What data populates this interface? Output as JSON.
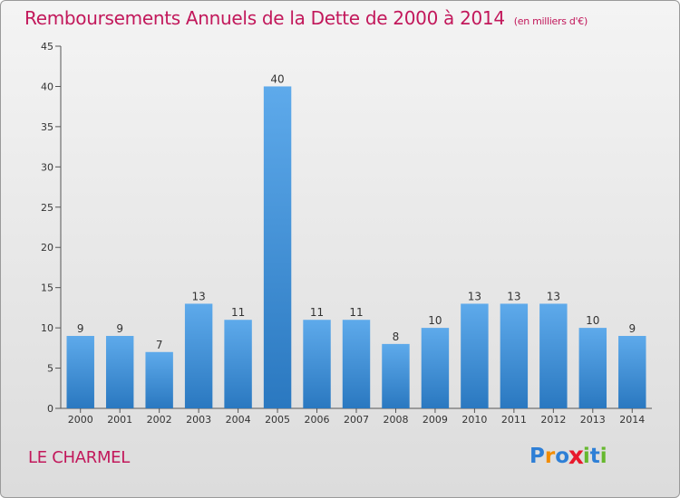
{
  "chart_data": {
    "type": "bar",
    "title": "Remboursements Annuels de la Dette de 2000 à 2014",
    "subtitle": "(en milliers d'€)",
    "categories": [
      "2000",
      "2001",
      "2002",
      "2003",
      "2004",
      "2005",
      "2006",
      "2007",
      "2008",
      "2009",
      "2010",
      "2011",
      "2012",
      "2013",
      "2014"
    ],
    "values": [
      9,
      9,
      7,
      13,
      11,
      40,
      11,
      11,
      8,
      10,
      13,
      13,
      13,
      10,
      9
    ],
    "ylim": [
      0,
      45
    ],
    "yticks": [
      0,
      5,
      10,
      15,
      20,
      25,
      30,
      35,
      40,
      45
    ],
    "xlabel": "",
    "ylabel": "",
    "grid": false,
    "bar_color": "#3a8fd8"
  },
  "footer": {
    "town": "LE CHARMEL",
    "logo_letters": [
      "P",
      "r",
      "o",
      "x",
      "i",
      "t",
      "i"
    ],
    "logo_colors": [
      "#2e7fd6",
      "#f28c00",
      "#2e7fd6",
      "#e8192c",
      "#66b82e",
      "#2e7fd6",
      "#66b82e"
    ]
  }
}
